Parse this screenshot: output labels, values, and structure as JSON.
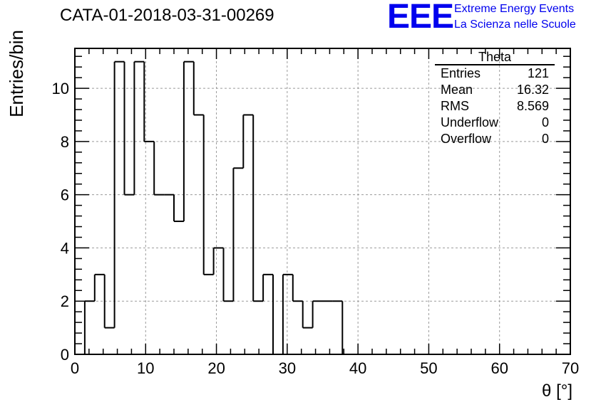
{
  "title": "CATA-01-2018-03-31-00269",
  "logo": {
    "text": "EEE",
    "line1": "Extreme Energy Events",
    "line2": "La Scienza nelle Scuole",
    "color": "#0000ee"
  },
  "stats": {
    "name": "Theta",
    "rows": [
      {
        "label": "Entries",
        "value": "121"
      },
      {
        "label": "Mean",
        "value": "16.32"
      },
      {
        "label": "RMS",
        "value": "8.569"
      },
      {
        "label": "Underflow",
        "value": "0"
      },
      {
        "label": "Overflow",
        "value": "0"
      }
    ]
  },
  "chart_data": {
    "type": "histogram",
    "title": "CATA-01-2018-03-31-00269",
    "xlabel": "θ [°]",
    "ylabel": "Entries/bin",
    "xlim": [
      0,
      70
    ],
    "ylim": [
      0,
      11.5
    ],
    "grid": true,
    "bin_width": 1.4,
    "bin_edges_start": 1.4,
    "x_ticks": [
      0,
      10,
      20,
      30,
      40,
      50,
      60,
      70
    ],
    "y_ticks": [
      0,
      2,
      4,
      6,
      8,
      10
    ],
    "values": [
      2,
      3,
      1,
      11,
      6,
      11,
      8,
      6,
      6,
      5,
      11,
      9,
      3,
      4,
      2,
      7,
      9,
      2,
      3,
      0,
      3,
      2,
      1,
      2,
      2,
      2
    ]
  }
}
